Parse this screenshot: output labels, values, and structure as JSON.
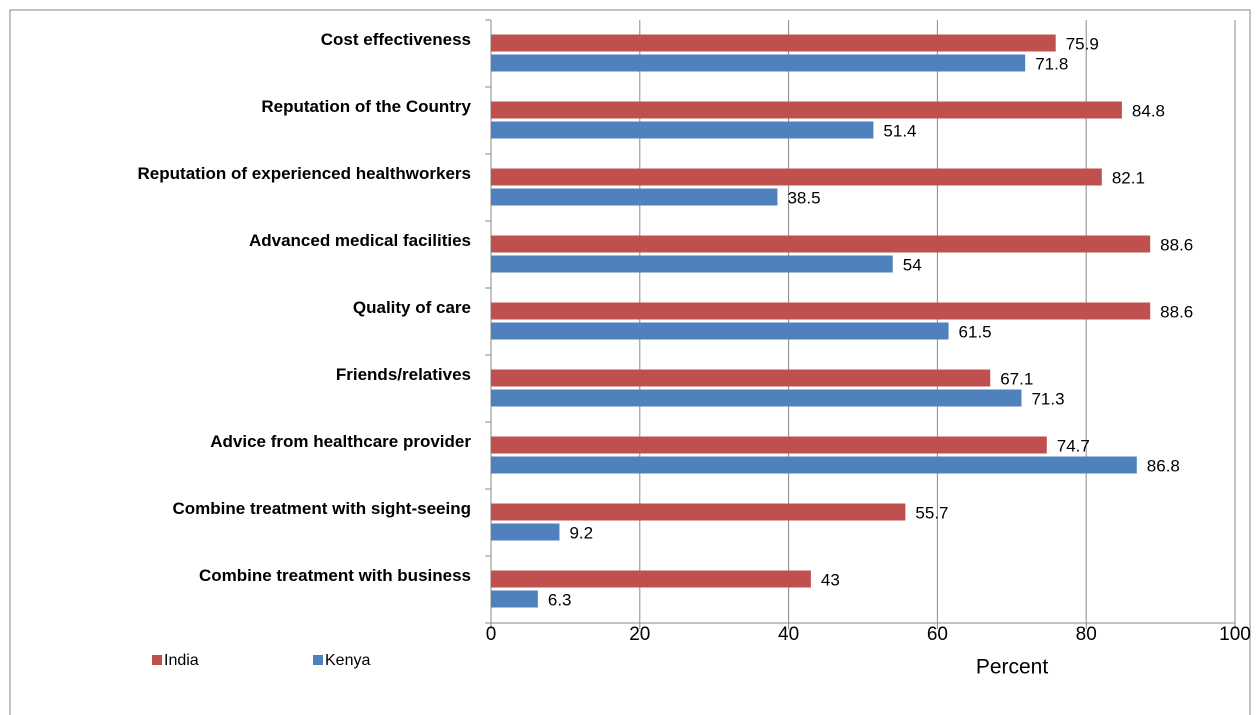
{
  "chart_data": {
    "type": "hbar",
    "categories": [
      "Cost effectiveness",
      "Reputation of the Country",
      "Reputation of experienced healthworkers",
      "Advanced medical facilities",
      "Quality of care",
      "Friends/relatives",
      "Advice from healthcare provider",
      "Combine treatment with sight-seeing",
      "Combine treatment with business"
    ],
    "series": [
      {
        "name": "India",
        "color": "#c0504d",
        "values": [
          75.9,
          84.8,
          82.1,
          88.6,
          88.6,
          67.1,
          74.7,
          55.7,
          43
        ]
      },
      {
        "name": "Kenya",
        "color": "#4f81bd",
        "values": [
          71.8,
          51.4,
          38.5,
          54,
          61.5,
          71.3,
          86.8,
          9.2,
          6.3
        ]
      }
    ],
    "xlabel": "Percent",
    "xlim": [
      0,
      100
    ],
    "xticks": [
      0,
      20,
      40,
      60,
      80,
      100
    ],
    "grid": true,
    "legend": "bottom-left"
  }
}
